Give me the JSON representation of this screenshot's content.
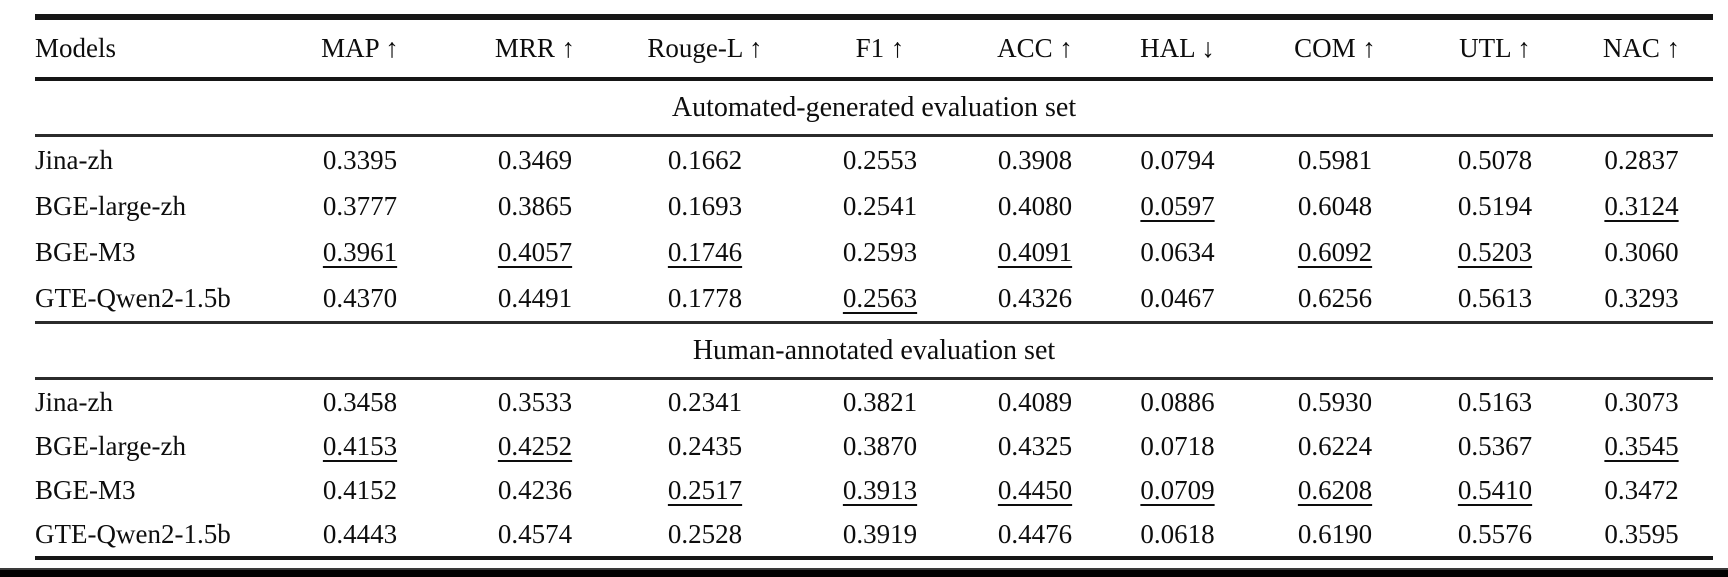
{
  "page": {
    "background_color": "#ffffff",
    "text_color": "#0d0d0d",
    "rule_color": "#161616"
  },
  "table": {
    "columns": [
      {
        "label": "Models"
      },
      {
        "label": "MAP ↑"
      },
      {
        "label": "MRR ↑"
      },
      {
        "label": "Rouge-L ↑"
      },
      {
        "label": "F1 ↑"
      },
      {
        "label": "ACC ↑"
      },
      {
        "label": "HAL ↓"
      },
      {
        "label": "COM ↑"
      },
      {
        "label": "UTL ↑"
      },
      {
        "label": "NAC ↑"
      }
    ],
    "sections": [
      {
        "title": "Automated-generated evaluation set",
        "rows": [
          {
            "model": "Jina-zh",
            "cells": [
              {
                "text": "0.3395",
                "style": "normal"
              },
              {
                "text": "0.3469",
                "style": "normal"
              },
              {
                "text": "0.1662",
                "style": "normal"
              },
              {
                "text": "0.2553",
                "style": "normal"
              },
              {
                "text": "0.3908",
                "style": "normal"
              },
              {
                "text": "0.0794",
                "style": "normal"
              },
              {
                "text": "0.5981",
                "style": "normal"
              },
              {
                "text": "0.5078",
                "style": "normal"
              },
              {
                "text": "0.2837",
                "style": "normal"
              }
            ]
          },
          {
            "model": "BGE-large-zh",
            "cells": [
              {
                "text": "0.3777",
                "style": "normal"
              },
              {
                "text": "0.3865",
                "style": "normal"
              },
              {
                "text": "0.1693",
                "style": "normal"
              },
              {
                "text": "0.2541",
                "style": "normal"
              },
              {
                "text": "0.4080",
                "style": "normal"
              },
              {
                "text": "0.0597",
                "style": "underline"
              },
              {
                "text": "0.6048",
                "style": "normal"
              },
              {
                "text": "0.5194",
                "style": "normal"
              },
              {
                "text": "0.3124",
                "style": "underline"
              }
            ]
          },
          {
            "model": "BGE-M3",
            "cells": [
              {
                "text": "0.3961",
                "style": "underline"
              },
              {
                "text": "0.4057",
                "style": "underline"
              },
              {
                "text": "0.1746",
                "style": "underline"
              },
              {
                "text": "0.2593",
                "style": "bold"
              },
              {
                "text": "0.4091",
                "style": "underline"
              },
              {
                "text": "0.0634",
                "style": "normal"
              },
              {
                "text": "0.6092",
                "style": "underline"
              },
              {
                "text": "0.5203",
                "style": "underline"
              },
              {
                "text": "0.3060",
                "style": "normal"
              }
            ]
          },
          {
            "model": "GTE-Qwen2-1.5b",
            "cells": [
              {
                "text": "0.4370",
                "style": "bold"
              },
              {
                "text": "0.4491",
                "style": "bold"
              },
              {
                "text": "0.1778",
                "style": "bold"
              },
              {
                "text": "0.2563",
                "style": "underline"
              },
              {
                "text": "0.4326",
                "style": "bold"
              },
              {
                "text": "0.0467",
                "style": "bold"
              },
              {
                "text": "0.6256",
                "style": "bold"
              },
              {
                "text": "0.5613",
                "style": "bold"
              },
              {
                "text": "0.3293",
                "style": "bold"
              }
            ]
          }
        ]
      },
      {
        "title": "Human-annotated evaluation set",
        "rows": [
          {
            "model": "Jina-zh",
            "cells": [
              {
                "text": "0.3458",
                "style": "normal"
              },
              {
                "text": "0.3533",
                "style": "normal"
              },
              {
                "text": "0.2341",
                "style": "normal"
              },
              {
                "text": "0.3821",
                "style": "normal"
              },
              {
                "text": "0.4089",
                "style": "normal"
              },
              {
                "text": "0.0886",
                "style": "normal"
              },
              {
                "text": "0.5930",
                "style": "normal"
              },
              {
                "text": "0.5163",
                "style": "normal"
              },
              {
                "text": "0.3073",
                "style": "normal"
              }
            ]
          },
          {
            "model": "BGE-large-zh",
            "cells": [
              {
                "text": "0.4153",
                "style": "underline"
              },
              {
                "text": "0.4252",
                "style": "underline"
              },
              {
                "text": "0.2435",
                "style": "normal"
              },
              {
                "text": "0.3870",
                "style": "normal"
              },
              {
                "text": "0.4325",
                "style": "normal"
              },
              {
                "text": "0.0718",
                "style": "normal"
              },
              {
                "text": "0.6224",
                "style": "bold"
              },
              {
                "text": "0.5367",
                "style": "normal"
              },
              {
                "text": "0.3545",
                "style": "underline"
              }
            ]
          },
          {
            "model": "BGE-M3",
            "cells": [
              {
                "text": "0.4152",
                "style": "normal"
              },
              {
                "text": "0.4236",
                "style": "normal"
              },
              {
                "text": "0.2517",
                "style": "underline"
              },
              {
                "text": "0.3913",
                "style": "underline"
              },
              {
                "text": "0.4450",
                "style": "underline"
              },
              {
                "text": "0.0709",
                "style": "underline"
              },
              {
                "text": "0.6208",
                "style": "underline"
              },
              {
                "text": "0.5410",
                "style": "underline"
              },
              {
                "text": "0.3472",
                "style": "normal"
              }
            ]
          },
          {
            "model": "GTE-Qwen2-1.5b",
            "cells": [
              {
                "text": "0.4443",
                "style": "bold"
              },
              {
                "text": "0.4574",
                "style": "bold"
              },
              {
                "text": "0.2528",
                "style": "bold"
              },
              {
                "text": "0.3919",
                "style": "bold"
              },
              {
                "text": "0.4476",
                "style": "bold"
              },
              {
                "text": "0.0618",
                "style": "bold"
              },
              {
                "text": "0.6190",
                "style": "normal"
              },
              {
                "text": "0.5576",
                "style": "bold"
              },
              {
                "text": "0.3595",
                "style": "bold"
              }
            ]
          }
        ]
      }
    ]
  }
}
